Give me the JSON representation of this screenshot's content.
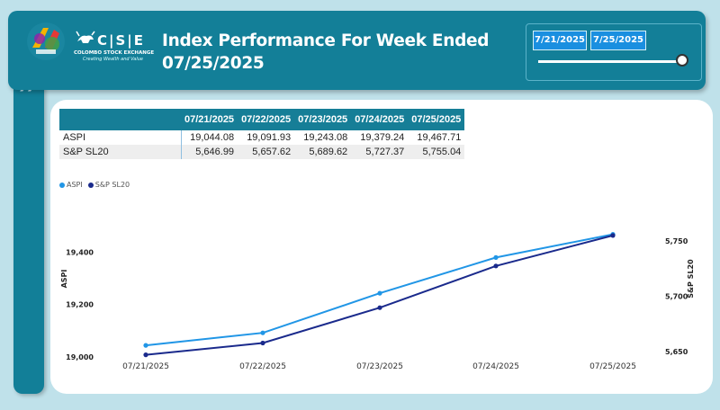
{
  "header": {
    "title_line1": "Index Performance For Week Ended",
    "title_line2": "07/25/2025",
    "cse_letters": "C|S|E",
    "cse_name": "COLOMBO STOCK EXCHANGE",
    "cse_tagline": "Creating Wealth and Value"
  },
  "slicer": {
    "start_date": "7/21/2025",
    "end_date": "7/25/2025"
  },
  "table": {
    "columns": [
      "",
      "07/21/2025",
      "07/22/2025",
      "07/23/2025",
      "07/24/2025",
      "07/25/2025"
    ],
    "rows": [
      {
        "name": "ASPI",
        "values": [
          "19,044.08",
          "19,091.93",
          "19,243.08",
          "19,379.24",
          "19,467.71"
        ]
      },
      {
        "name": "S&P SL20",
        "values": [
          "5,646.99",
          "5,657.62",
          "5,689.62",
          "5,727.37",
          "5,755.04"
        ]
      }
    ]
  },
  "colors": {
    "aspi": "#2196e6",
    "sl20": "#1a2a8c",
    "header_bg": "#137f98"
  },
  "chart_data": {
    "type": "line",
    "categories": [
      "07/21/2025",
      "07/22/2025",
      "07/23/2025",
      "07/24/2025",
      "07/25/2025"
    ],
    "series": [
      {
        "name": "ASPI",
        "axis": "left",
        "values": [
          19044.08,
          19091.93,
          19243.08,
          19379.24,
          19467.71
        ]
      },
      {
        "name": "S&P SL20",
        "axis": "right",
        "values": [
          5646.99,
          5657.62,
          5689.62,
          5727.37,
          5755.04
        ]
      }
    ],
    "ylabel": "ASPI",
    "y2label": "S&P SL20",
    "ylim": [
      19000,
      19480
    ],
    "y2lim": [
      5645,
      5759
    ],
    "yticks": [
      "19,000",
      "19,200",
      "19,400"
    ],
    "y2ticks": [
      "5,650",
      "5,700",
      "5,750"
    ],
    "legend_position": "top-left",
    "grid": false
  }
}
